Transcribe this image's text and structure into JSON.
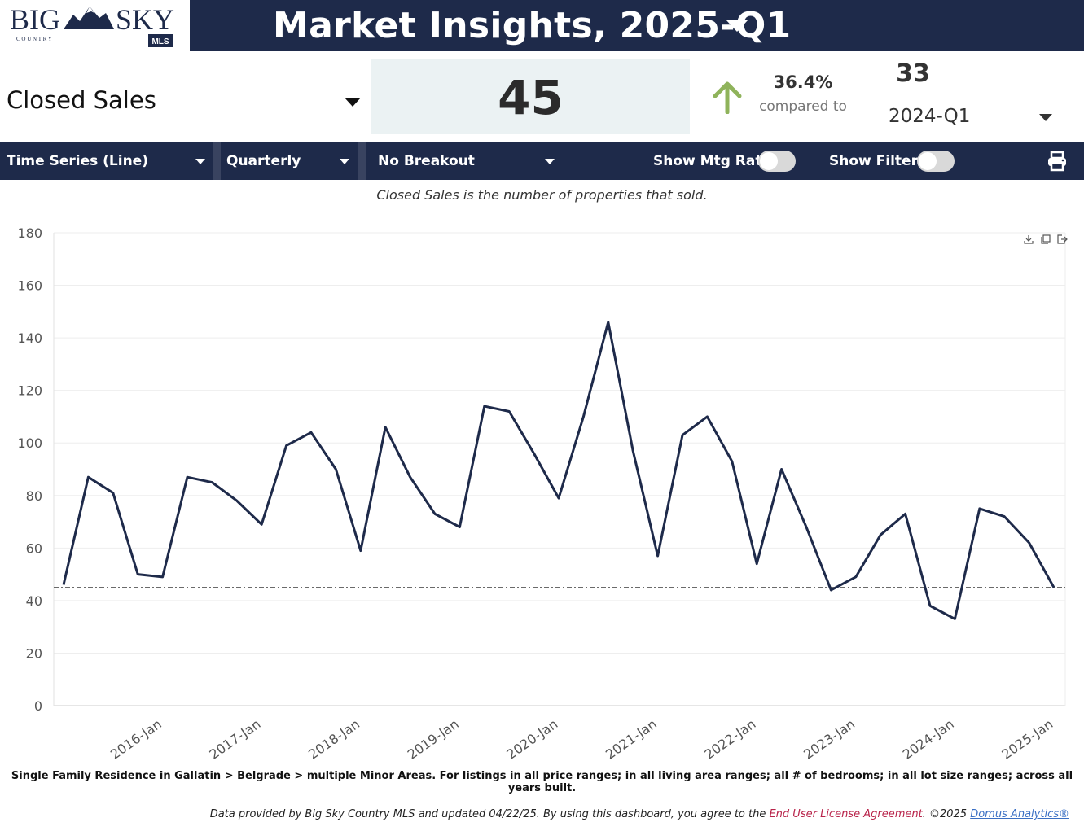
{
  "logo": {
    "word1": "BIG",
    "word2": "SKY",
    "subtitle": "C O U N T R Y",
    "badge": "MLS"
  },
  "header": {
    "title": "Market Insights, 2025-Q1"
  },
  "metric": {
    "label": "Closed Sales",
    "value": "45"
  },
  "comparison": {
    "percent": "36.4%",
    "compared_label": "compared to",
    "previous_value": "33",
    "previous_period": "2024-Q1"
  },
  "toolbar": {
    "chart_type": "Time Series (Line)",
    "interval": "Quarterly",
    "breakout": "No Breakout",
    "show_mtg_rate": "Show Mtg Rate:",
    "show_filters": "Show Filters:"
  },
  "description": "Closed Sales is the number of properties that sold.",
  "chart_data": {
    "type": "line",
    "x": [
      "2015-Q1",
      "2015-Q2",
      "2015-Q3",
      "2015-Q4",
      "2016-Q1",
      "2016-Q2",
      "2016-Q3",
      "2016-Q4",
      "2017-Q1",
      "2017-Q2",
      "2017-Q3",
      "2017-Q4",
      "2018-Q1",
      "2018-Q2",
      "2018-Q3",
      "2018-Q4",
      "2019-Q1",
      "2019-Q2",
      "2019-Q3",
      "2019-Q4",
      "2020-Q1",
      "2020-Q2",
      "2020-Q3",
      "2020-Q4",
      "2021-Q1",
      "2021-Q2",
      "2021-Q3",
      "2021-Q4",
      "2022-Q1",
      "2022-Q2",
      "2022-Q3",
      "2022-Q4",
      "2023-Q1",
      "2023-Q2",
      "2023-Q3",
      "2023-Q4",
      "2024-Q1",
      "2024-Q2",
      "2024-Q3",
      "2024-Q4",
      "2025-Q1"
    ],
    "values": [
      46,
      87,
      81,
      50,
      49,
      87,
      85,
      78,
      69,
      99,
      104,
      90,
      59,
      106,
      87,
      73,
      68,
      114,
      112,
      96,
      79,
      110,
      146,
      97,
      57,
      103,
      110,
      93,
      54,
      90,
      68,
      44,
      49,
      65,
      73,
      38,
      33,
      75,
      72,
      62,
      45
    ],
    "reference_line": 45,
    "ylim": [
      0,
      180
    ],
    "yticks": [
      "0",
      "20",
      "40",
      "60",
      "80",
      "100",
      "120",
      "140",
      "160",
      "180"
    ],
    "xtick_labels": [
      "2016-Jan",
      "2017-Jan",
      "2018-Jan",
      "2019-Jan",
      "2020-Jan",
      "2021-Jan",
      "2022-Jan",
      "2023-Jan",
      "2024-Jan",
      "2025-Jan"
    ],
    "xtick_positions": [
      4,
      8,
      12,
      16,
      20,
      24,
      28,
      32,
      36,
      40
    ],
    "line_color": "#1e2a4a",
    "grid": true
  },
  "footnote": "Single Family Residence in Gallatin > Belgrade > multiple Minor Areas. For listings in all price ranges; in all living area ranges; all # of bedrooms; in all lot size ranges; across all years built.",
  "credits": {
    "prefix": "Data provided by Big Sky Country MLS and updated 04/22/25.  By using this dashboard, you agree to the ",
    "eula": "End User License Agreement",
    "middle": ".  ©2025 ",
    "domus": "Domus Analytics®"
  },
  "colors": {
    "navy": "#1e2a4a",
    "up_arrow": "#8fb35b",
    "value_bg": "#ebf2f3"
  },
  "icons": {
    "print": "printer-icon",
    "download": "download-icon",
    "copy": "copy-icon",
    "export": "export-icon"
  }
}
